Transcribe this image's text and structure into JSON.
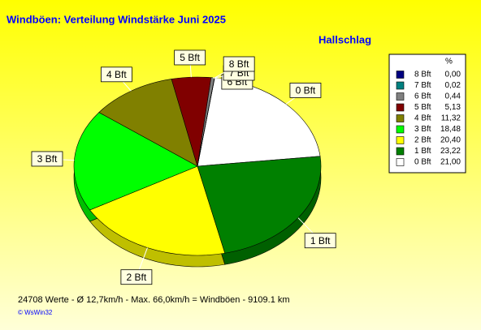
{
  "chart_data": {
    "type": "pie",
    "title": "Windböen: Verteilung Windstärke  Juni 2025",
    "subtitle": "Hallschlag",
    "categories": [
      "0 Bft",
      "1 Bft",
      "2 Bft",
      "3 Bft",
      "4 Bft",
      "5 Bft",
      "6 Bft",
      "7 Bft",
      "8 Bft"
    ],
    "values": [
      21.0,
      23.22,
      20.4,
      18.48,
      11.32,
      5.13,
      0.44,
      0.02,
      0.0
    ],
    "value_labels": [
      "21,00",
      "23,22",
      "20,40",
      "18,48",
      "11,32",
      "5,13",
      "0,44",
      "0,02",
      "0,00"
    ],
    "colors": [
      "#ffffff",
      "#008000",
      "#ffff00",
      "#00ff00",
      "#808000",
      "#800000",
      "#808080",
      "#008080",
      "#000080"
    ],
    "legend_header": "%",
    "footer": "24708 Werte    -    Ø 12,7km/h  -  Max. 66,0km/h = Windböen    -    9109.1 km",
    "credit": "© WsWin32"
  }
}
